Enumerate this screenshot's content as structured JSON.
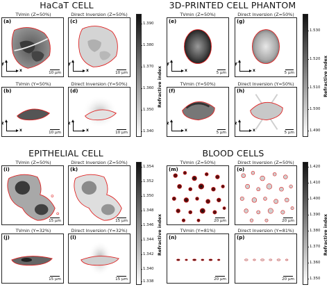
{
  "sections": {
    "hacat": "HaCaT CELL",
    "phantom": "3D-PRINTED CELL PHANTOM",
    "epithelial": "EPITHELIAL CELL",
    "blood": "BLOOD CELLS"
  },
  "panels": {
    "a": {
      "letter": "(a)",
      "label": "TVmin (Z=50%)",
      "scale": "10 µm"
    },
    "c": {
      "letter": "(c)",
      "label": "Direct Inversion (Z=50%)",
      "scale": "10 µm"
    },
    "b": {
      "letter": "(b)",
      "label": "TVmin (Y=50%)",
      "scale": "10 µm"
    },
    "d": {
      "letter": "(d)",
      "label": "Direct Inversion (Y=50%)",
      "scale": "10 µm"
    },
    "e": {
      "letter": "(e)",
      "label": "TVmin (Z=50%)",
      "scale": "5 µm"
    },
    "g": {
      "letter": "(g)",
      "label": "Direct Inversion (Z=50%)",
      "scale": "5 µm"
    },
    "f": {
      "letter": "(f)",
      "label": "TVmin (Y=50%)",
      "scale": "5 µm"
    },
    "h": {
      "letter": "(h)",
      "label": "Direct Inversion (Y=50%)",
      "scale": "5 µm"
    },
    "i": {
      "letter": "(i)",
      "label": "TVmin (Z=50%)",
      "scale": "15 µm"
    },
    "k": {
      "letter": "(k)",
      "label": "Direct Inversion (Z=50%)",
      "scale": "15 µm"
    },
    "j": {
      "letter": "(j)",
      "label": "TVmin (Y=32%)",
      "scale": "15 µm"
    },
    "l": {
      "letter": "(l)",
      "label": "Direct Inversion (Y=32%)",
      "scale": "15 µm"
    },
    "m": {
      "letter": "(m)",
      "label": "TVmin (Z=50%)",
      "scale": "20 µm"
    },
    "o": {
      "letter": "(o)",
      "label": "Direct Inversion (Z=50%)",
      "scale": "20 µm"
    },
    "n": {
      "letter": "(n)",
      "label": "TVmin (Y=81%)",
      "scale": "20 µm"
    },
    "p": {
      "letter": "(p)",
      "label": "Direct Inversion (Y=81%)",
      "scale": "20 µm"
    }
  },
  "axes": {
    "x": "x",
    "y": "y",
    "z": "z"
  },
  "colorbars": {
    "label": "Refractive index",
    "hacat": [
      "1.390",
      "1.380",
      "1.370",
      "1.360",
      "1.350",
      "1.340"
    ],
    "phantom": [
      "1.530",
      "1.520",
      "1.510",
      "1.500",
      "1.490"
    ],
    "epithelial": [
      "1.354",
      "1.352",
      "1.350",
      "1.348",
      "1.346",
      "1.344",
      "1.342",
      "1.340",
      "1.338"
    ],
    "blood": [
      "1.420",
      "1.410",
      "1.400",
      "1.390",
      "1.380",
      "1.370",
      "1.360",
      "1.350"
    ]
  },
  "colors": {
    "contour": "#e02020",
    "frame": "#222222"
  }
}
